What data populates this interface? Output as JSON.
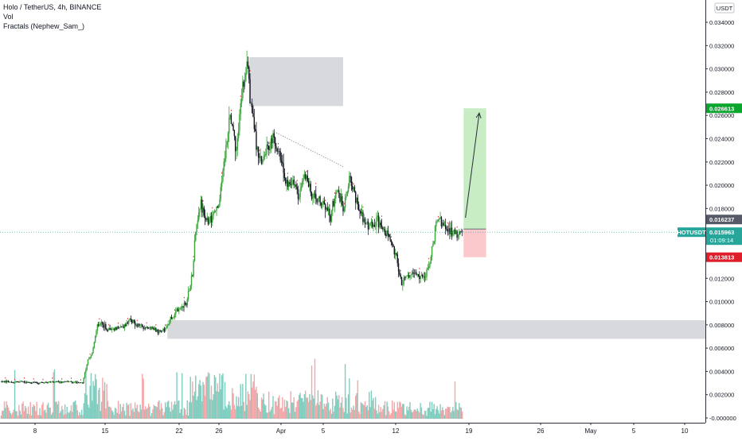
{
  "header": {
    "symbol_line": "Holo / TetherUS, 4h, BINANCE",
    "indicator_vol": "Vol",
    "indicator_fractals": "Fractals (Nephew_Sam_)"
  },
  "currency_label": "USDT",
  "colors": {
    "up": "#26a69a",
    "up_candle": "#3aa43a",
    "down": "#131722",
    "vol_up": "#7fcdbe",
    "vol_down": "#f5a6a8",
    "zone": "#d8d9dd",
    "target": "#c8ecc4",
    "stop": "#fbc9cb",
    "price_badge": "#26a69a",
    "target_badge": "#0aa52c",
    "stop_badge": "#e01e2b",
    "entry_badge": "#555a66",
    "fractal": "#e0332f"
  },
  "chart_data": {
    "type": "candlestick",
    "title": "Holo / TetherUS, 4h, BINANCE",
    "y_axis": {
      "ticks": [
        "0.034000",
        "0.032000",
        "0.030000",
        "0.028000",
        "0.026000",
        "0.024000",
        "0.022000",
        "0.020000",
        "0.018000",
        "0.016000",
        "0.014000",
        "0.012000",
        "0.010000",
        "0.008000",
        "0.006000",
        "0.004000",
        "0.002000",
        "-0.000000"
      ],
      "range": [
        -0.0002,
        0.0345
      ]
    },
    "x_axis": {
      "ticks": [
        "8",
        "15",
        "22",
        "26",
        "Apr",
        "5",
        "12",
        "19",
        "26",
        "May",
        "5",
        "10"
      ]
    },
    "price_path": [
      {
        "d": 0,
        "p": 0.0031
      },
      {
        "d": 3,
        "p": 0.0031
      },
      {
        "d": 6,
        "p": 0.003
      },
      {
        "d": 8,
        "p": 0.0031
      },
      {
        "d": 11,
        "p": 0.0031
      },
      {
        "d": 13,
        "p": 0.003
      },
      {
        "d": 13.8,
        "p": 0.005
      },
      {
        "d": 14.5,
        "p": 0.0055
      },
      {
        "d": 15.3,
        "p": 0.008
      },
      {
        "d": 16,
        "p": 0.0082
      },
      {
        "d": 17,
        "p": 0.0075
      },
      {
        "d": 18,
        "p": 0.0077
      },
      {
        "d": 19.5,
        "p": 0.0078
      },
      {
        "d": 20.5,
        "p": 0.0084
      },
      {
        "d": 22,
        "p": 0.0079
      },
      {
        "d": 24,
        "p": 0.0078
      },
      {
        "d": 25,
        "p": 0.0074
      },
      {
        "d": 26,
        "p": 0.0076
      },
      {
        "d": 27,
        "p": 0.0085
      },
      {
        "d": 28.5,
        "p": 0.0095
      },
      {
        "d": 29.5,
        "p": 0.0097
      },
      {
        "d": 30.5,
        "p": 0.0125
      },
      {
        "d": 31,
        "p": 0.016
      },
      {
        "d": 31.8,
        "p": 0.0185
      },
      {
        "d": 32.5,
        "p": 0.0168
      },
      {
        "d": 33.5,
        "p": 0.017
      },
      {
        "d": 34.5,
        "p": 0.0178
      },
      {
        "d": 35.5,
        "p": 0.022
      },
      {
        "d": 36.5,
        "p": 0.0258
      },
      {
        "d": 37.5,
        "p": 0.0232
      },
      {
        "d": 38.5,
        "p": 0.0285
      },
      {
        "d": 39.2,
        "p": 0.03
      },
      {
        "d": 39.8,
        "p": 0.027
      },
      {
        "d": 40.5,
        "p": 0.024
      },
      {
        "d": 41.5,
        "p": 0.0215
      },
      {
        "d": 42.5,
        "p": 0.0232
      },
      {
        "d": 43.5,
        "p": 0.024
      },
      {
        "d": 44.5,
        "p": 0.0222
      },
      {
        "d": 45.5,
        "p": 0.02
      },
      {
        "d": 46.5,
        "p": 0.0205
      },
      {
        "d": 47.5,
        "p": 0.019
      },
      {
        "d": 48.5,
        "p": 0.021
      },
      {
        "d": 49.5,
        "p": 0.019
      },
      {
        "d": 50.5,
        "p": 0.0188
      },
      {
        "d": 51.5,
        "p": 0.0185
      },
      {
        "d": 52.5,
        "p": 0.0172
      },
      {
        "d": 53.5,
        "p": 0.0198
      },
      {
        "d": 54.5,
        "p": 0.018
      },
      {
        "d": 55.5,
        "p": 0.0205
      },
      {
        "d": 56.5,
        "p": 0.019
      },
      {
        "d": 57.3,
        "p": 0.0175
      },
      {
        "d": 58,
        "p": 0.0168
      },
      {
        "d": 59,
        "p": 0.0165
      },
      {
        "d": 60,
        "p": 0.017
      },
      {
        "d": 61,
        "p": 0.016
      },
      {
        "d": 62,
        "p": 0.0155
      },
      {
        "d": 63,
        "p": 0.014
      },
      {
        "d": 63.8,
        "p": 0.0115
      },
      {
        "d": 64.5,
        "p": 0.012
      },
      {
        "d": 65.5,
        "p": 0.0125
      },
      {
        "d": 66.5,
        "p": 0.0122
      },
      {
        "d": 67.5,
        "p": 0.012
      },
      {
        "d": 68.5,
        "p": 0.0138
      },
      {
        "d": 69.3,
        "p": 0.0165
      },
      {
        "d": 70,
        "p": 0.017
      },
      {
        "d": 71,
        "p": 0.0162
      },
      {
        "d": 72,
        "p": 0.016
      },
      {
        "d": 73,
        "p": 0.0158
      },
      {
        "d": 73.5,
        "p": 0.01596
      }
    ],
    "drawings": {
      "upper_zone": {
        "d0": 39.5,
        "d1": 54.5,
        "p_low": 0.0268,
        "p_high": 0.031
      },
      "lower_zone": {
        "d0": 26.5,
        "d1": 80,
        "p_low": 0.0068,
        "p_high": 0.0084
      },
      "position": {
        "d0": 73.7,
        "d1": 77.3,
        "entry": 0.016237,
        "target": 0.026613,
        "stop": 0.013813
      },
      "trendline": {
        "d0": 43.5,
        "p0": 0.0246,
        "d1": 54.5,
        "p1": 0.0216
      },
      "arrow": {
        "d0": 74.0,
        "p0": 0.0172,
        "d1": 76.2,
        "p1": 0.0262
      }
    },
    "price_labels": {
      "target": "0.026613",
      "entry": "0.016237",
      "current": "0.015963",
      "countdown": "01:09:14",
      "stop": "0.013813",
      "ticker": "HOTUSDT"
    }
  }
}
